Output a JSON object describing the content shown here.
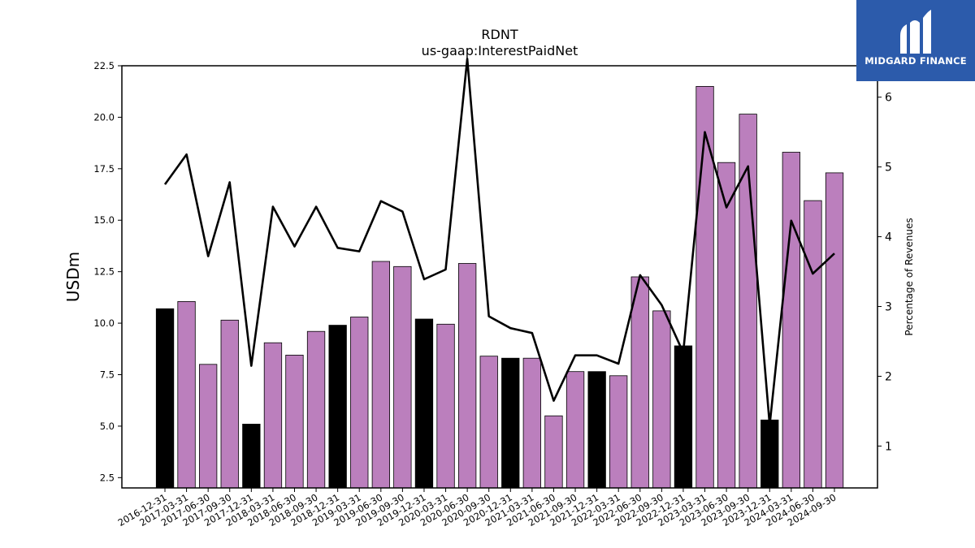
{
  "chart_data": {
    "type": "bar+line",
    "title": "RDNT",
    "subtitle": "us-gaap:InterestPaidNet",
    "ylabel": "USDm",
    "y2label": "Percentage of Revenues",
    "ylim": [
      2.0,
      22.5
    ],
    "y2lim": [
      0.4,
      6.45
    ],
    "yticks": [
      "2.5",
      "5.0",
      "7.5",
      "10.0",
      "12.5",
      "15.0",
      "17.5",
      "20.0",
      "22.5"
    ],
    "y2ticks": [
      "1",
      "2",
      "3",
      "4",
      "5",
      "6"
    ],
    "colors": {
      "bar_q4": "#000000",
      "bar_other": "#bb7fbd",
      "line": "#000000"
    },
    "categories": [
      "2016-12-31",
      "2017-03-31",
      "2017-06-30",
      "2017-09-30",
      "2017-12-31",
      "2018-03-31",
      "2018-06-30",
      "2018-09-30",
      "2018-12-31",
      "2019-03-31",
      "2019-06-30",
      "2019-09-30",
      "2019-12-31",
      "2020-03-31",
      "2020-06-30",
      "2020-09-30",
      "2020-12-31",
      "2021-03-31",
      "2021-06-30",
      "2021-09-30",
      "2021-12-31",
      "2022-03-31",
      "2022-06-30",
      "2022-09-30",
      "2022-12-31",
      "2023-03-31",
      "2023-06-30",
      "2023-09-30",
      "2023-12-31",
      "2024-03-31",
      "2024-06-30",
      "2024-09-30"
    ],
    "series": [
      {
        "type": "bar",
        "values": [
          10.7,
          11.05,
          8.0,
          10.15,
          5.1,
          9.05,
          8.45,
          9.6,
          9.9,
          10.3,
          13.0,
          12.75,
          10.2,
          9.95,
          12.9,
          8.4,
          8.3,
          8.3,
          5.5,
          7.65,
          7.65,
          7.45,
          12.25,
          10.6,
          8.9,
          21.5,
          17.8,
          20.15,
          5.3,
          18.3,
          15.95,
          17.3
        ]
      },
      {
        "type": "line",
        "axis": "right",
        "values": [
          4.75,
          5.18,
          3.72,
          4.78,
          2.15,
          4.43,
          3.86,
          4.43,
          3.84,
          3.79,
          4.51,
          4.36,
          3.39,
          3.53,
          6.55,
          2.86,
          2.69,
          2.62,
          1.65,
          2.3,
          2.3,
          2.18,
          3.45,
          3.02,
          2.34,
          5.5,
          4.42,
          5.01,
          1.3,
          4.23,
          3.47,
          3.76
        ]
      }
    ]
  },
  "logo": {
    "text": "MIDGARD FINANCE",
    "icon": "midgard-logo-icon"
  }
}
